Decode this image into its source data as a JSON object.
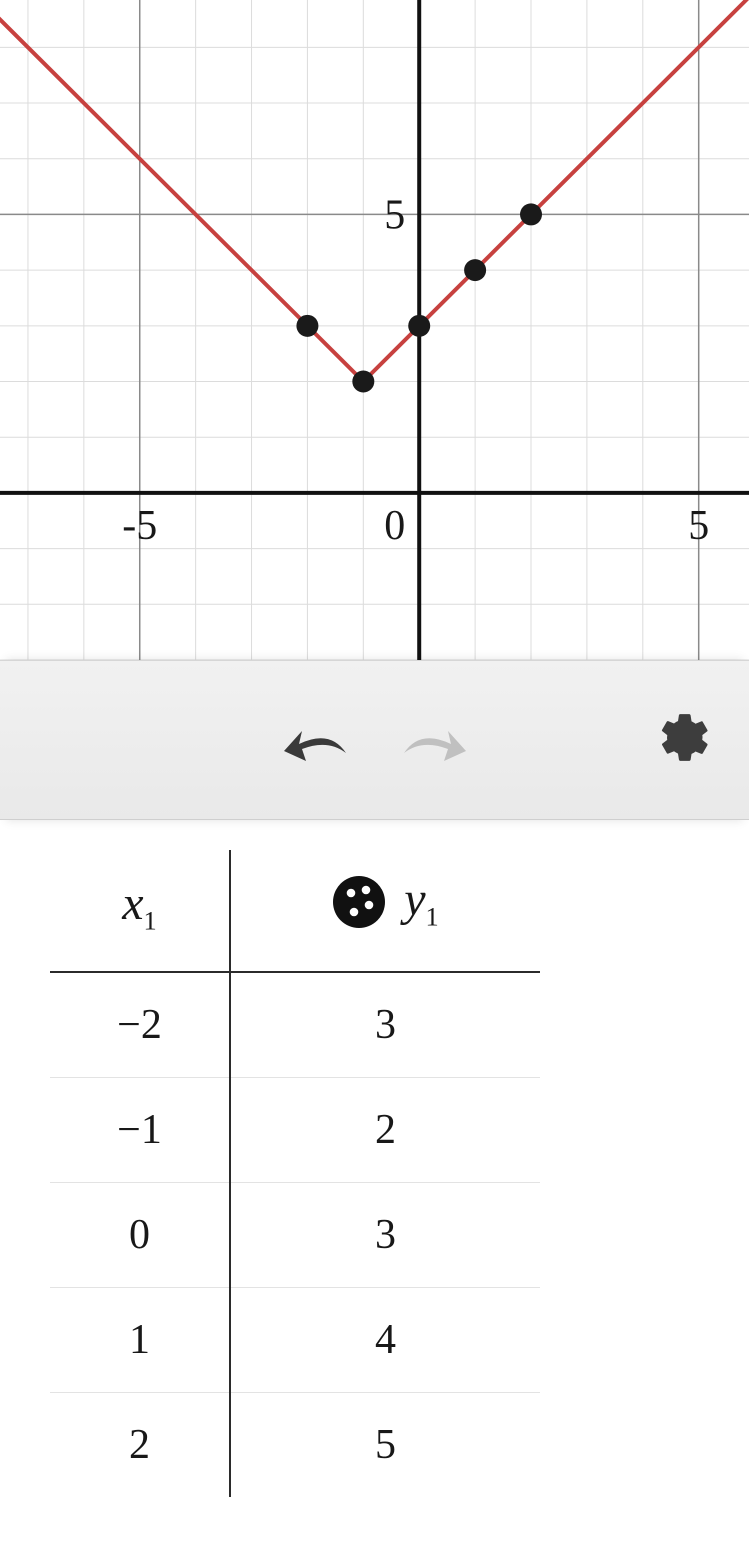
{
  "chart": {
    "type": "line-with-scatter",
    "background_color": "#ffffff",
    "minor_grid_color": "#dcdcdc",
    "major_grid_color": "#8a8a8a",
    "axis_color": "#111111",
    "x_range": [
      -7.5,
      5.9
    ],
    "y_range": [
      -3.0,
      8.85
    ],
    "minor_step": 1,
    "major_step": 5,
    "x_tick_labels": [
      {
        "value": -5,
        "label": "-5"
      },
      {
        "value": 0,
        "label": "0"
      },
      {
        "value": 5,
        "label": "5"
      }
    ],
    "y_tick_labels": [
      {
        "value": 5,
        "label": "5"
      }
    ],
    "tick_fontsize": 42,
    "tick_color": "#181818",
    "line_color": "#c7413f",
    "line_width": 4,
    "line_segments": [
      {
        "from": [
          -10,
          11
        ],
        "to": [
          -1,
          2
        ]
      },
      {
        "from": [
          -1,
          2
        ],
        "to": [
          9,
          12
        ]
      }
    ],
    "point_color": "#1a1a1a",
    "point_radius": 11,
    "points": [
      {
        "x": -2,
        "y": 3
      },
      {
        "x": -1,
        "y": 2
      },
      {
        "x": 0,
        "y": 3
      },
      {
        "x": 1,
        "y": 4
      },
      {
        "x": 2,
        "y": 5
      }
    ]
  },
  "toolbar": {
    "undo_icon_color": "#3a3a3a",
    "redo_icon_color": "#c0c0c0",
    "gear_icon_color": "#3d3d3d",
    "background_color": "#ececec"
  },
  "table": {
    "columns": [
      {
        "name": "x",
        "sub": "1"
      },
      {
        "name": "y",
        "sub": "1"
      }
    ],
    "scatter_indicator_color": "#111111",
    "header_fontsize": 48,
    "cell_fontsize": 42,
    "border_color": "#2b2b2b",
    "row_divider_color": "#e3e3e3",
    "rows": [
      {
        "x": "−2",
        "y": "3"
      },
      {
        "x": "−1",
        "y": "2"
      },
      {
        "x": "0",
        "y": "3"
      },
      {
        "x": "1",
        "y": "4"
      },
      {
        "x": "2",
        "y": "5"
      }
    ]
  }
}
